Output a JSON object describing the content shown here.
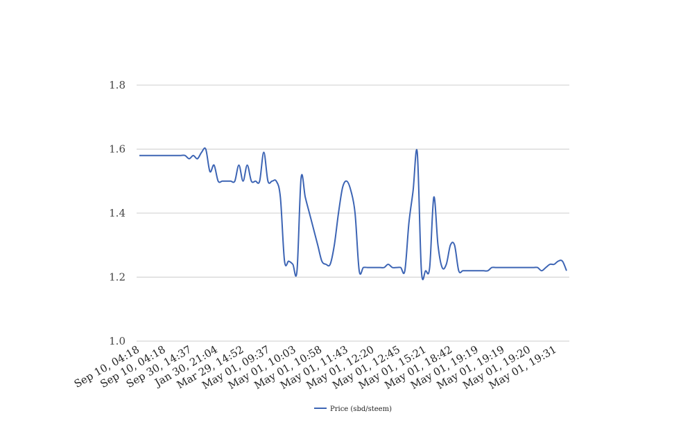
{
  "chart_data": {
    "type": "line",
    "title": "",
    "xlabel": "",
    "ylabel": "",
    "ylim": [
      1.0,
      1.8
    ],
    "yticks": [
      "1.0",
      "1.2",
      "1.4",
      "1.6",
      "1.8"
    ],
    "grid": true,
    "legend_position": "bottom",
    "series": [
      {
        "name": "Price (sbd/steem)",
        "color": "#3c64b4",
        "values": [
          1.58,
          1.58,
          1.58,
          1.58,
          1.58,
          1.58,
          1.58,
          1.58,
          1.58,
          1.58,
          1.58,
          1.58,
          1.57,
          1.58,
          1.57,
          1.59,
          1.6,
          1.53,
          1.55,
          1.5,
          1.5,
          1.5,
          1.5,
          1.5,
          1.55,
          1.5,
          1.55,
          1.5,
          1.5,
          1.5,
          1.59,
          1.5,
          1.5,
          1.5,
          1.45,
          1.25,
          1.25,
          1.24,
          1.22,
          1.51,
          1.45,
          1.4,
          1.35,
          1.3,
          1.25,
          1.24,
          1.24,
          1.3,
          1.4,
          1.48,
          1.5,
          1.47,
          1.4,
          1.22,
          1.23,
          1.23,
          1.23,
          1.23,
          1.23,
          1.23,
          1.24,
          1.23,
          1.23,
          1.23,
          1.22,
          1.37,
          1.47,
          1.59,
          1.22,
          1.22,
          1.23,
          1.45,
          1.3,
          1.23,
          1.24,
          1.3,
          1.3,
          1.22,
          1.22,
          1.22,
          1.22,
          1.22,
          1.22,
          1.22,
          1.22,
          1.23,
          1.23,
          1.23,
          1.23,
          1.23,
          1.23,
          1.23,
          1.23,
          1.23,
          1.23,
          1.23,
          1.23,
          1.22,
          1.23,
          1.24,
          1.24,
          1.25,
          1.25,
          1.22
        ]
      }
    ],
    "x_tick_labels": [
      "Sep 10, 04:18",
      "Sep 10, 04:18",
      "Sep 30, 14:37",
      "Jan 30, 21:04",
      "Mar 29, 14:52",
      "May 01, 09:37",
      "May 01, 10:03",
      "May 01, 10:58",
      "May 01, 11:43",
      "May 01, 12:20",
      "May 01, 12:45",
      "May 01, 15:21",
      "May 01, 18:42",
      "May 01, 19:19",
      "May 01, 19:19",
      "May 01, 19:20",
      "May 01, 19:31"
    ]
  }
}
